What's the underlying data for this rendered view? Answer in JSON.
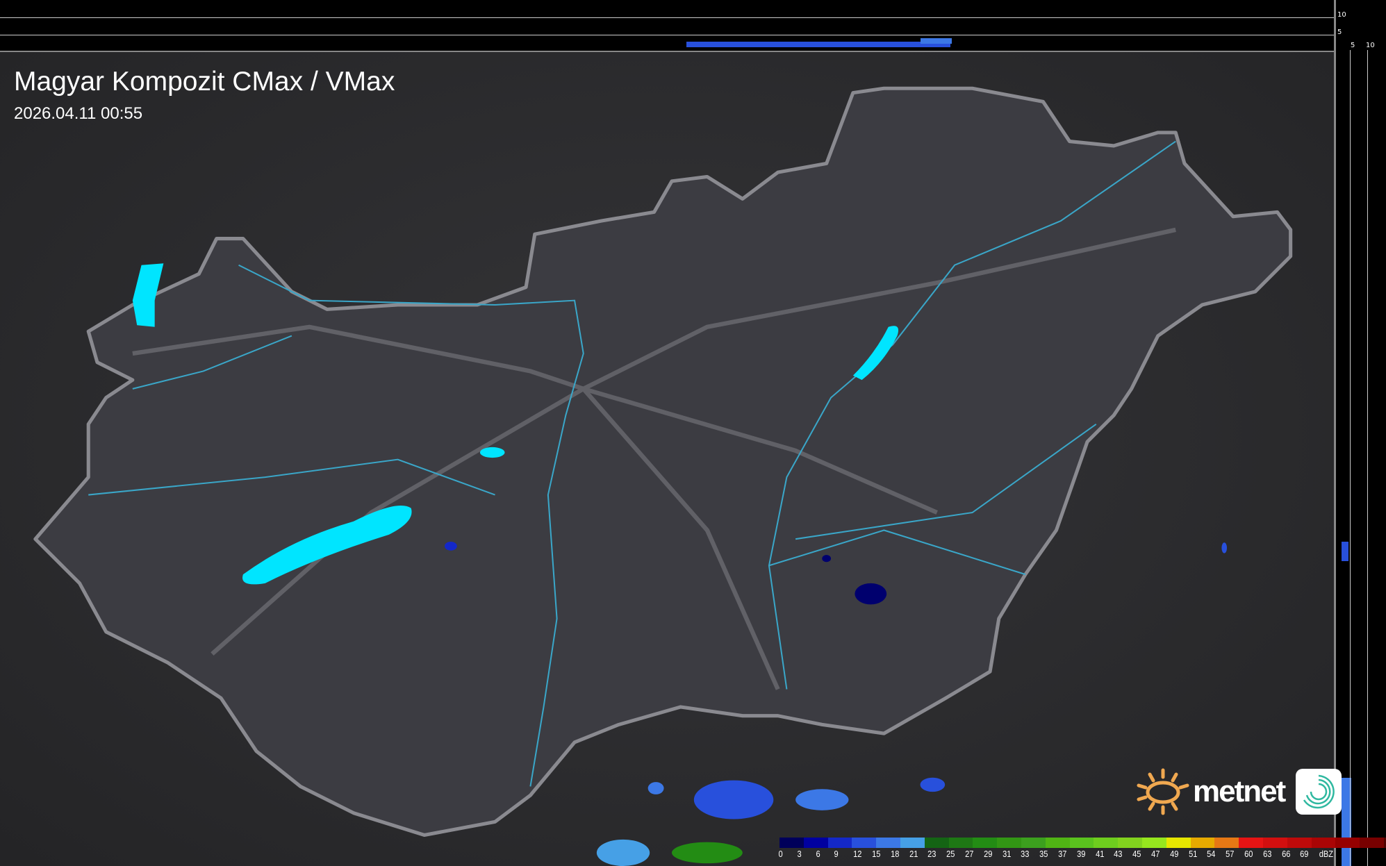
{
  "header": {
    "title": "Magyar Kompozit CMax / VMax",
    "timestamp": "2026.04.11 00:55"
  },
  "side_scales": {
    "right_ticks": [
      "10",
      "5"
    ],
    "bottom_ticks": [
      "5",
      "10"
    ]
  },
  "logo": {
    "text": "metnet",
    "sun_color": "#f0a850",
    "icon_color": "#2fb8a0"
  },
  "colors": {
    "lake": "#00e5ff",
    "river": "#3aa6c8",
    "country_fill": "#3c3c42",
    "border": "#8a8a90"
  },
  "legend": {
    "unit": "dBZ",
    "labels": [
      "0",
      "3",
      "6",
      "9",
      "12",
      "15",
      "18",
      "21",
      "23",
      "25",
      "27",
      "29",
      "31",
      "33",
      "35",
      "37",
      "39",
      "41",
      "43",
      "45",
      "47",
      "49",
      "51",
      "54",
      "57",
      "60",
      "63",
      "66",
      "69"
    ],
    "colors": [
      "#00005a",
      "#0000a0",
      "#1428c8",
      "#2850dc",
      "#3c78e6",
      "#46a0e6",
      "#146414",
      "#1e7814",
      "#238c14",
      "#329614",
      "#3ca01e",
      "#50b414",
      "#5ac31e",
      "#6ecd1e",
      "#82d21e",
      "#96e61e",
      "#e6e600",
      "#e6aa00",
      "#e67814",
      "#e61414",
      "#d20f0f",
      "#be0a0a",
      "#aa0505",
      "#960000",
      "#780000",
      "#500000",
      "#e614e6",
      "#e6a0e6",
      "#8ce6e6"
    ]
  }
}
